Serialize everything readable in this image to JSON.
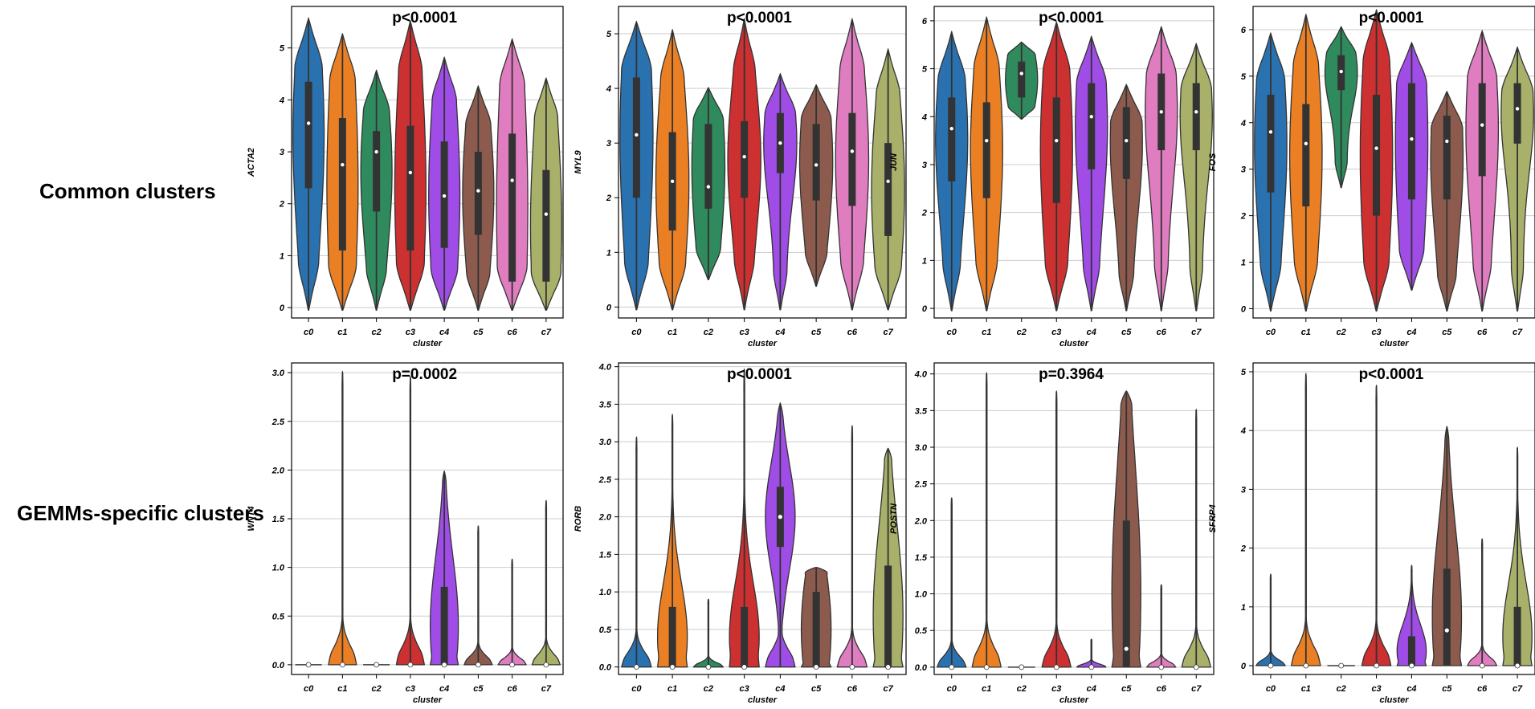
{
  "row_labels": [
    "Common clusters",
    "GEMMs-specific clusters"
  ],
  "colors": {
    "c0": "#2a71b0",
    "c1": "#ea8023",
    "c2": "#2f8a5d",
    "c3": "#cc3030",
    "c4": "#9f4de6",
    "c5": "#8c5b4e",
    "c6": "#e07cc0",
    "c7": "#a8b06a",
    "grid": "#cccccc",
    "box": "#333333",
    "median": "#ffffff"
  },
  "chart_data": [
    {
      "type": "violin",
      "title": "p<0.0001",
      "xlabel": "cluster",
      "ylabel": "ACTA2",
      "categories": [
        "c0",
        "c1",
        "c2",
        "c3",
        "c4",
        "c5",
        "c6",
        "c7"
      ],
      "ylim": [
        -0.2,
        5.8
      ],
      "yticks": [
        0,
        1,
        2,
        3,
        4,
        5
      ],
      "ytick_labels": [
        "0",
        "1",
        "2",
        "3",
        "4",
        "5"
      ],
      "grid": true,
      "shape": "wide",
      "series": [
        {
          "min": -0.05,
          "q1": 2.3,
          "median": 3.55,
          "q3": 4.35,
          "max": 5.55
        },
        {
          "min": -0.05,
          "q1": 1.1,
          "median": 2.75,
          "q3": 3.65,
          "max": 5.25
        },
        {
          "min": -0.05,
          "q1": 1.85,
          "median": 3.0,
          "q3": 3.4,
          "max": 4.55
        },
        {
          "min": -0.05,
          "q1": 1.1,
          "median": 2.6,
          "q3": 3.5,
          "max": 5.5
        },
        {
          "min": -0.05,
          "q1": 1.15,
          "median": 2.15,
          "q3": 3.2,
          "max": 4.8
        },
        {
          "min": -0.05,
          "q1": 1.4,
          "median": 2.25,
          "q3": 3.0,
          "max": 4.25
        },
        {
          "min": -0.05,
          "q1": 0.5,
          "median": 2.45,
          "q3": 3.35,
          "max": 5.15
        },
        {
          "min": -0.05,
          "q1": 0.5,
          "median": 1.8,
          "q3": 2.65,
          "max": 4.4
        }
      ]
    },
    {
      "type": "violin",
      "title": "p<0.0001",
      "xlabel": "cluster",
      "ylabel": "MYL9",
      "categories": [
        "c0",
        "c1",
        "c2",
        "c3",
        "c4",
        "c5",
        "c6",
        "c7"
      ],
      "ylim": [
        -0.2,
        5.5
      ],
      "yticks": [
        0,
        1,
        2,
        3,
        4,
        5
      ],
      "ytick_labels": [
        "0",
        "1",
        "2",
        "3",
        "4",
        "5"
      ],
      "grid": true,
      "shape": "wide",
      "series": [
        {
          "min": -0.05,
          "q1": 2.0,
          "median": 3.15,
          "q3": 4.2,
          "max": 5.2
        },
        {
          "min": -0.05,
          "q1": 1.4,
          "median": 2.3,
          "q3": 3.2,
          "max": 5.05
        },
        {
          "min": 0.5,
          "q1": 1.8,
          "median": 2.2,
          "q3": 3.35,
          "max": 4.0
        },
        {
          "min": -0.05,
          "q1": 2.0,
          "median": 2.75,
          "q3": 3.4,
          "max": 5.25
        },
        {
          "min": -0.05,
          "q1": 2.45,
          "median": 3.0,
          "q3": 3.55,
          "max": 4.25
        },
        {
          "min": 0.38,
          "q1": 1.95,
          "median": 2.6,
          "q3": 3.35,
          "max": 4.05
        },
        {
          "min": -0.05,
          "q1": 1.85,
          "median": 2.85,
          "q3": 3.55,
          "max": 5.25
        },
        {
          "min": -0.05,
          "q1": 1.3,
          "median": 2.3,
          "q3": 3.0,
          "max": 4.7
        }
      ]
    },
    {
      "type": "violin",
      "title": "p<0.0001",
      "xlabel": "cluster",
      "ylabel": "JUN",
      "categories": [
        "c0",
        "c1",
        "c2",
        "c3",
        "c4",
        "c5",
        "c6",
        "c7"
      ],
      "ylim": [
        -0.2,
        6.3
      ],
      "yticks": [
        0,
        1,
        2,
        3,
        4,
        5,
        6
      ],
      "ytick_labels": [
        "0",
        "1",
        "2",
        "3",
        "4",
        "5",
        "6"
      ],
      "grid": true,
      "shape": "wide",
      "series": [
        {
          "min": -0.05,
          "q1": 2.65,
          "median": 3.75,
          "q3": 4.4,
          "max": 5.75
        },
        {
          "min": -0.05,
          "q1": 2.3,
          "median": 3.5,
          "q3": 4.3,
          "max": 6.05
        },
        {
          "min": 3.95,
          "q1": 4.4,
          "median": 4.9,
          "q3": 5.15,
          "max": 5.55
        },
        {
          "min": -0.05,
          "q1": 2.2,
          "median": 3.5,
          "q3": 4.4,
          "max": 5.95
        },
        {
          "min": -0.05,
          "q1": 2.9,
          "median": 4.0,
          "q3": 4.7,
          "max": 5.65
        },
        {
          "min": -0.05,
          "q1": 2.7,
          "median": 3.5,
          "q3": 4.2,
          "max": 4.65
        },
        {
          "min": -0.05,
          "q1": 3.3,
          "median": 4.1,
          "q3": 4.9,
          "max": 5.85
        },
        {
          "min": -0.05,
          "q1": 3.3,
          "median": 4.1,
          "q3": 4.7,
          "max": 5.5
        }
      ]
    },
    {
      "type": "violin",
      "title": "p<0.0001",
      "xlabel": "cluster",
      "ylabel": "FOS",
      "categories": [
        "c0",
        "c1",
        "c2",
        "c3",
        "c4",
        "c5",
        "c6",
        "c7"
      ],
      "ylim": [
        -0.2,
        6.5
      ],
      "yticks": [
        0,
        1,
        2,
        3,
        4,
        5,
        6
      ],
      "ytick_labels": [
        "0",
        "1",
        "2",
        "3",
        "4",
        "5",
        "6"
      ],
      "grid": true,
      "shape": "wide",
      "series": [
        {
          "min": -0.05,
          "q1": 2.5,
          "median": 3.8,
          "q3": 4.6,
          "max": 5.9
        },
        {
          "min": -0.05,
          "q1": 2.2,
          "median": 3.55,
          "q3": 4.4,
          "max": 6.3
        },
        {
          "min": 2.6,
          "q1": 4.7,
          "median": 5.1,
          "q3": 5.45,
          "max": 6.05
        },
        {
          "min": -0.05,
          "q1": 2.0,
          "median": 3.45,
          "q3": 4.6,
          "max": 6.4
        },
        {
          "min": 0.4,
          "q1": 2.35,
          "median": 3.65,
          "q3": 4.85,
          "max": 5.7
        },
        {
          "min": -0.05,
          "q1": 2.35,
          "median": 3.6,
          "q3": 4.15,
          "max": 4.65
        },
        {
          "min": -0.05,
          "q1": 2.85,
          "median": 3.95,
          "q3": 4.85,
          "max": 5.95
        },
        {
          "min": -0.05,
          "q1": 3.55,
          "median": 4.3,
          "q3": 4.85,
          "max": 5.6
        }
      ]
    },
    {
      "type": "violin",
      "title": "p=0.0002",
      "xlabel": "cluster",
      "ylabel": "WNT4",
      "categories": [
        "c0",
        "c1",
        "c2",
        "c3",
        "c4",
        "c5",
        "c6",
        "c7"
      ],
      "ylim": [
        -0.1,
        3.1
      ],
      "yticks": [
        0,
        0.5,
        1,
        1.5,
        2,
        2.5,
        3
      ],
      "ytick_labels": [
        "0.0",
        "0.5",
        "1.0",
        "1.5",
        "2.0",
        "2.5",
        "3.0"
      ],
      "grid": true,
      "shape": "skewed",
      "series": [
        {
          "min": 0,
          "q1": 0,
          "median": 0,
          "q3": 0,
          "max": 0
        },
        {
          "min": 0,
          "q1": 0,
          "median": 0,
          "q3": 0,
          "max": 3.0
        },
        {
          "min": 0,
          "q1": 0,
          "median": 0,
          "q3": 0,
          "max": 0
        },
        {
          "min": 0,
          "q1": 0,
          "median": 0,
          "q3": 0,
          "max": 2.95
        },
        {
          "min": 0,
          "q1": 0,
          "median": 0,
          "q3": 0.8,
          "max": 1.98
        },
        {
          "min": 0,
          "q1": 0,
          "median": 0,
          "q3": 0,
          "max": 1.42
        },
        {
          "min": 0,
          "q1": 0,
          "median": 0,
          "q3": 0,
          "max": 1.08
        },
        {
          "min": 0,
          "q1": 0,
          "median": 0,
          "q3": 0,
          "max": 1.68
        }
      ]
    },
    {
      "type": "violin",
      "title": "p<0.0001",
      "xlabel": "cluster",
      "ylabel": "RORB",
      "categories": [
        "c0",
        "c1",
        "c2",
        "c3",
        "c4",
        "c5",
        "c6",
        "c7"
      ],
      "ylim": [
        -0.1,
        4.05
      ],
      "yticks": [
        0,
        0.5,
        1,
        1.5,
        2,
        2.5,
        3,
        3.5,
        4
      ],
      "ytick_labels": [
        "0.0",
        "0.5",
        "1.0",
        "1.5",
        "2.0",
        "2.5",
        "3.0",
        "3.5",
        "4.0"
      ],
      "grid": true,
      "shape": "skewed",
      "series": [
        {
          "min": 0,
          "q1": 0,
          "median": 0,
          "q3": 0,
          "max": 3.05
        },
        {
          "min": 0,
          "q1": 0,
          "median": 0,
          "q3": 0.8,
          "max": 3.35
        },
        {
          "min": 0,
          "q1": 0,
          "median": 0,
          "q3": 0,
          "max": 0.9
        },
        {
          "min": 0,
          "q1": 0,
          "median": 0,
          "q3": 0.8,
          "max": 3.95
        },
        {
          "min": 0,
          "q1": 1.6,
          "median": 2.0,
          "q3": 2.4,
          "max": 3.5
        },
        {
          "min": 0,
          "q1": 0,
          "median": 0,
          "q3": 1.0,
          "max": 1.32
        },
        {
          "min": 0,
          "q1": 0,
          "median": 0,
          "q3": 0,
          "max": 3.2
        },
        {
          "min": 0,
          "q1": 0,
          "median": 0,
          "q3": 1.35,
          "max": 2.9
        }
      ]
    },
    {
      "type": "violin",
      "title": "p=0.3964",
      "xlabel": "cluster",
      "ylabel": "POSTN",
      "categories": [
        "c0",
        "c1",
        "c2",
        "c3",
        "c4",
        "c5",
        "c6",
        "c7"
      ],
      "ylim": [
        -0.1,
        4.15
      ],
      "yticks": [
        0,
        0.5,
        1,
        1.5,
        2,
        2.5,
        3,
        3.5,
        4
      ],
      "ytick_labels": [
        "0.0",
        "0.5",
        "1.0",
        "1.5",
        "2.0",
        "2.5",
        "3.0",
        "3.5",
        "4.0"
      ],
      "grid": true,
      "shape": "skewed",
      "series": [
        {
          "min": 0,
          "q1": 0,
          "median": 0,
          "q3": 0,
          "max": 2.3
        },
        {
          "min": 0,
          "q1": 0,
          "median": 0,
          "q3": 0,
          "max": 4.0
        },
        {
          "min": 0,
          "q1": 0,
          "median": 0,
          "q3": 0,
          "max": 0
        },
        {
          "min": 0,
          "q1": 0,
          "median": 0,
          "q3": 0,
          "max": 3.75
        },
        {
          "min": 0,
          "q1": 0,
          "median": 0,
          "q3": 0,
          "max": 0.38
        },
        {
          "min": 0,
          "q1": 0,
          "median": 0.25,
          "q3": 2.0,
          "max": 3.75
        },
        {
          "min": 0,
          "q1": 0,
          "median": 0,
          "q3": 0,
          "max": 1.12
        },
        {
          "min": 0,
          "q1": 0,
          "median": 0,
          "q3": 0,
          "max": 3.5
        }
      ]
    },
    {
      "type": "violin",
      "title": "p<0.0001",
      "xlabel": "cluster",
      "ylabel": "SFRP4",
      "categories": [
        "c0",
        "c1",
        "c2",
        "c3",
        "c4",
        "c5",
        "c6",
        "c7"
      ],
      "ylim": [
        -0.15,
        5.15
      ],
      "yticks": [
        0,
        1,
        2,
        3,
        4,
        5
      ],
      "ytick_labels": [
        "0",
        "1",
        "2",
        "3",
        "4",
        "5"
      ],
      "grid": true,
      "shape": "skewed",
      "series": [
        {
          "min": 0,
          "q1": 0,
          "median": 0,
          "q3": 0,
          "max": 1.55
        },
        {
          "min": 0,
          "q1": 0,
          "median": 0,
          "q3": 0,
          "max": 4.95
        },
        {
          "min": 0,
          "q1": 0,
          "median": 0,
          "q3": 0,
          "max": 0
        },
        {
          "min": 0,
          "q1": 0,
          "median": 0,
          "q3": 0,
          "max": 4.75
        },
        {
          "min": 0,
          "q1": 0,
          "median": 0,
          "q3": 0.5,
          "max": 1.7
        },
        {
          "min": 0,
          "q1": 0,
          "median": 0.6,
          "q3": 1.65,
          "max": 4.05
        },
        {
          "min": 0,
          "q1": 0,
          "median": 0,
          "q3": 0,
          "max": 2.15
        },
        {
          "min": 0,
          "q1": 0,
          "median": 0,
          "q3": 1.0,
          "max": 3.7
        }
      ]
    }
  ]
}
